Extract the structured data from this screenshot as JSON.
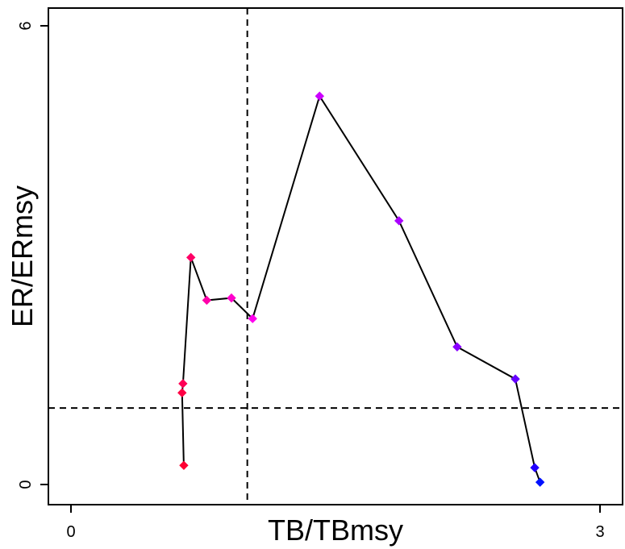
{
  "chart_data": {
    "type": "line",
    "xlabel": "TB/TBmsy",
    "ylabel": "ER/ERmsy",
    "xlim": [
      0,
      3
    ],
    "ylim": [
      0,
      6
    ],
    "x_ticks": [
      "0",
      "3"
    ],
    "y_ticks": [
      "0",
      "6"
    ],
    "reference_lines": {
      "vertical_x": 1.0,
      "horizontal_y": 1.0,
      "style": "dashed"
    },
    "grid": false,
    "legend": "none",
    "series": [
      {
        "points": [
          {
            "x": 0.64,
            "y": 0.25,
            "color": "#FF0033"
          },
          {
            "x": 0.63,
            "y": 1.2,
            "color": "#FF0044"
          },
          {
            "x": 0.635,
            "y": 1.32,
            "color": "#FF0055"
          },
          {
            "x": 0.68,
            "y": 2.97,
            "color": "#FF0066"
          },
          {
            "x": 0.77,
            "y": 2.41,
            "color": "#FF00AA"
          },
          {
            "x": 0.91,
            "y": 2.44,
            "color": "#FF00CC"
          },
          {
            "x": 1.03,
            "y": 2.17,
            "color": "#FF00EE"
          },
          {
            "x": 1.41,
            "y": 5.08,
            "color": "#CC00FF"
          },
          {
            "x": 1.86,
            "y": 3.45,
            "color": "#AA00FF"
          },
          {
            "x": 2.19,
            "y": 1.8,
            "color": "#8800FF"
          },
          {
            "x": 2.52,
            "y": 1.38,
            "color": "#6600FF"
          },
          {
            "x": 2.63,
            "y": 0.22,
            "color": "#2200FF"
          },
          {
            "x": 2.66,
            "y": 0.03,
            "color": "#0011FF"
          }
        ]
      }
    ]
  }
}
